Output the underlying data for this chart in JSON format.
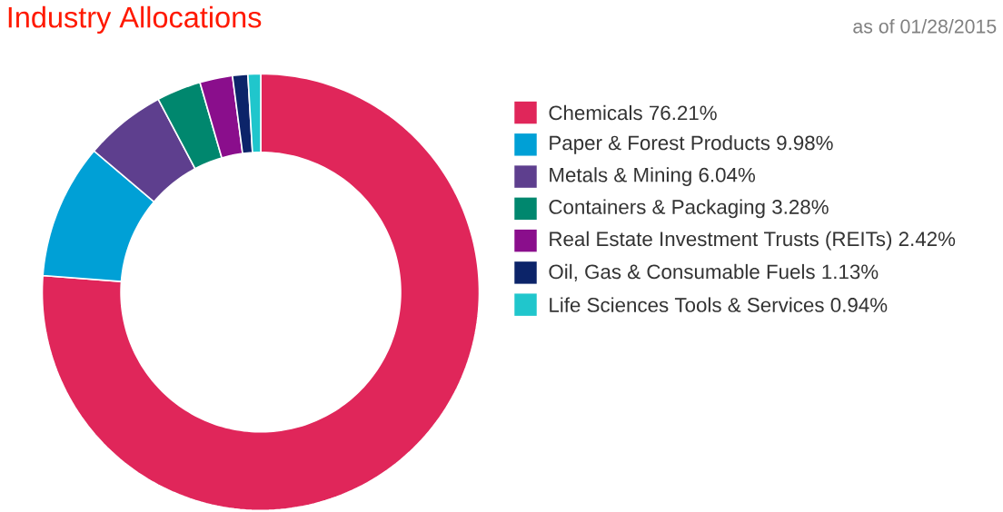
{
  "chart_data": {
    "type": "donut",
    "title": "Industry Allocations",
    "subtitle": "as of 01/28/2015",
    "categories": [
      "Chemicals",
      "Paper & Forest Products",
      "Metals & Mining",
      "Containers & Packaging",
      "Real Estate Investment Trusts (REITs)",
      "Oil, Gas & Consumable Fuels",
      "Life Sciences Tools & Services"
    ],
    "values": [
      76.21,
      9.98,
      6.04,
      3.28,
      2.42,
      1.13,
      0.94
    ],
    "value_labels": [
      "76.21%",
      "9.98%",
      "6.04%",
      "3.28%",
      "2.42%",
      "1.13%",
      "0.94%"
    ],
    "colors": [
      "#e0265a",
      "#00a0d6",
      "#5e3f8e",
      "#00876e",
      "#8a0e8c",
      "#0c2469",
      "#20c6cc"
    ],
    "legend": "right"
  }
}
